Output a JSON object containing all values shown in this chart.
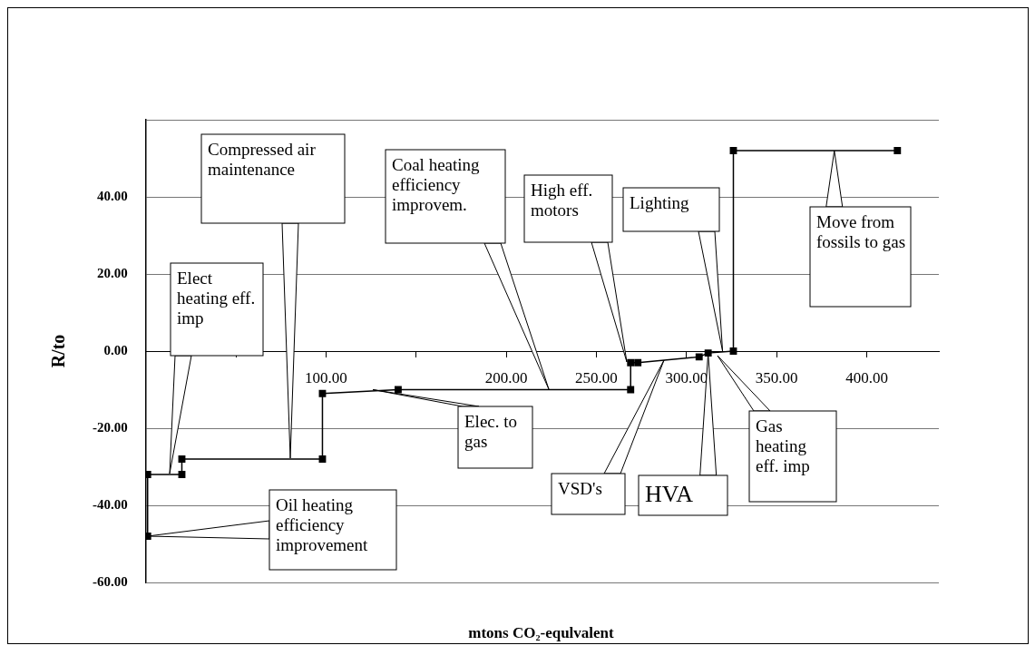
{
  "chart_data": {
    "type": "line",
    "xlabel": "mtons CO₂-equlvalent",
    "ylabel": "R/to",
    "x": [
      0,
      1,
      1,
      20,
      20,
      98,
      98,
      140,
      269,
      269,
      273,
      307,
      312,
      326,
      326,
      417
    ],
    "values": [
      -48,
      -48,
      -32,
      -32,
      -28,
      -28,
      -11,
      -10,
      -10,
      -3,
      -3,
      -1.5,
      -0.5,
      0,
      52,
      52
    ],
    "color": "#000000",
    "marker": "square",
    "line_style": "solid",
    "grid": "y",
    "legend": false,
    "xlim": [
      0,
      440
    ],
    "xticks": [
      {
        "value": 50,
        "label": null
      },
      {
        "value": 100,
        "label": "100.00"
      },
      {
        "value": 150,
        "label": null
      },
      {
        "value": 200,
        "label": "200.00"
      },
      {
        "value": 250,
        "label": "250.00"
      },
      {
        "value": 300,
        "label": "300.00"
      },
      {
        "value": 350,
        "label": "350.00"
      },
      {
        "value": 400,
        "label": "400.00"
      }
    ],
    "ylim": [
      -60,
      60
    ],
    "yticks": [
      {
        "value": -60,
        "label": "-60.00"
      },
      {
        "value": -40,
        "label": "-40.00"
      },
      {
        "value": -20,
        "label": "-20.00"
      },
      {
        "value": 0,
        "label": "0.00"
      },
      {
        "value": 20,
        "label": "20.00"
      },
      {
        "value": 40,
        "label": "40.00"
      },
      {
        "value": 60,
        "label": null
      }
    ],
    "annotations": [
      "Compressed air maintenance",
      "Elect heating eff. imp",
      {
        "text": "Oil heating efficiency improvement",
        "x": 1,
        "y": -48
      },
      "Coal heating efficiency improvem.",
      {
        "text": "Elec. to gas",
        "x": 126,
        "y": -10
      },
      "High eff. motors",
      {
        "text": "Lighting",
        "x": 320,
        "y": 0
      },
      {
        "text": "Move from fossils to gas",
        "x": 382,
        "y": 52
      },
      "VSD's",
      {
        "text": "HVA",
        "x": 312,
        "y": -0.5
      },
      "Gas heating eff. imp"
    ]
  }
}
